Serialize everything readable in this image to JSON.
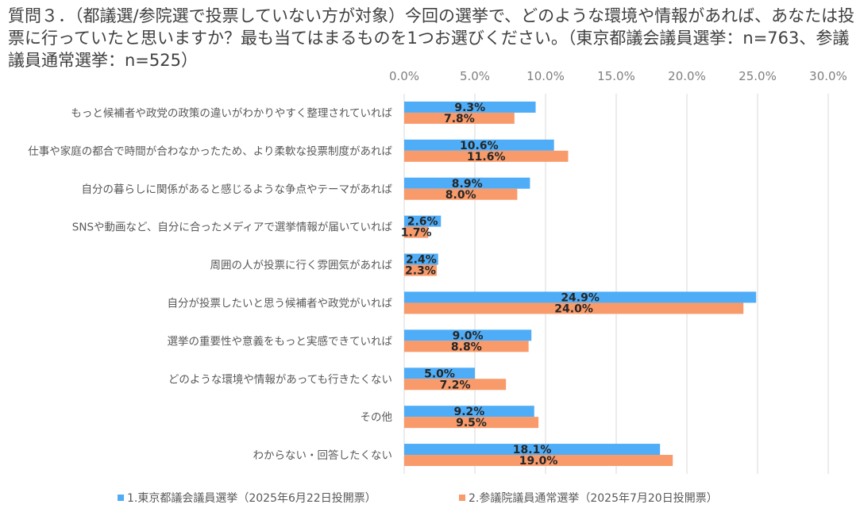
{
  "title": "質問３．（都議選/参院選で投票していない方が対象）今回の選挙で、どのような環境や情報があれば、あなたは投票に行っていたと思いますか？最も当てはまるものを1つお選びください。（東京都議会議員選挙：n=763、参議議員通常選挙：n=525）",
  "colors": {
    "series1": "#4FADF7",
    "series2": "#F99A6A",
    "grid": "#D9D9D9",
    "label": "#262626"
  },
  "chart_data": {
    "type": "bar",
    "orientation": "horizontal",
    "xlim": [
      0,
      30
    ],
    "x_ticks": [
      "0.0%",
      "5.0%",
      "10.0%",
      "15.0%",
      "20.0%",
      "25.0%",
      "30.0%"
    ],
    "x_tick_values": [
      0,
      5,
      10,
      15,
      20,
      25,
      30
    ],
    "grid": true,
    "legend_position": "bottom",
    "categories": [
      "もっと候補者や政党の政策の違いがわかりやすく整理されていれば",
      "仕事や家庭の都合で時間が合わなかったため、より柔軟な投票制度があれば",
      "自分の暮らしに関係があると感じるような争点やテーマがあれば",
      "SNSや動画など、自分に合ったメディアで選挙情報が届いていれば",
      "周囲の人が投票に行く雰囲気があれば",
      "自分が投票したいと思う候補者や政党がいれば",
      "選挙の重要性や意義をもっと実感できていれば",
      "どのような環境や情報があっても行きたくない",
      "その他",
      "わからない・回答したくない"
    ],
    "series": [
      {
        "name": "1.東京都議会議員選挙（2025年6月22日投開票）",
        "values": [
          9.3,
          10.6,
          8.9,
          2.6,
          2.4,
          24.9,
          9.0,
          5.0,
          9.2,
          18.1
        ],
        "labels": [
          "9.3%",
          "10.6%",
          "8.9%",
          "2.6%",
          "2.4%",
          "24.9%",
          "9.0%",
          "5.0%",
          "9.2%",
          "18.1%"
        ]
      },
      {
        "name": "2.参議院議員通常選挙（2025年7月20日投開票）",
        "values": [
          7.8,
          11.6,
          8.0,
          1.7,
          2.3,
          24.0,
          8.8,
          7.2,
          9.5,
          19.0
        ],
        "labels": [
          "7.8%",
          "11.6%",
          "8.0%",
          "1.7%",
          "2.3%",
          "24.0%",
          "8.8%",
          "7.2%",
          "9.5%",
          "19.0%"
        ]
      }
    ]
  }
}
